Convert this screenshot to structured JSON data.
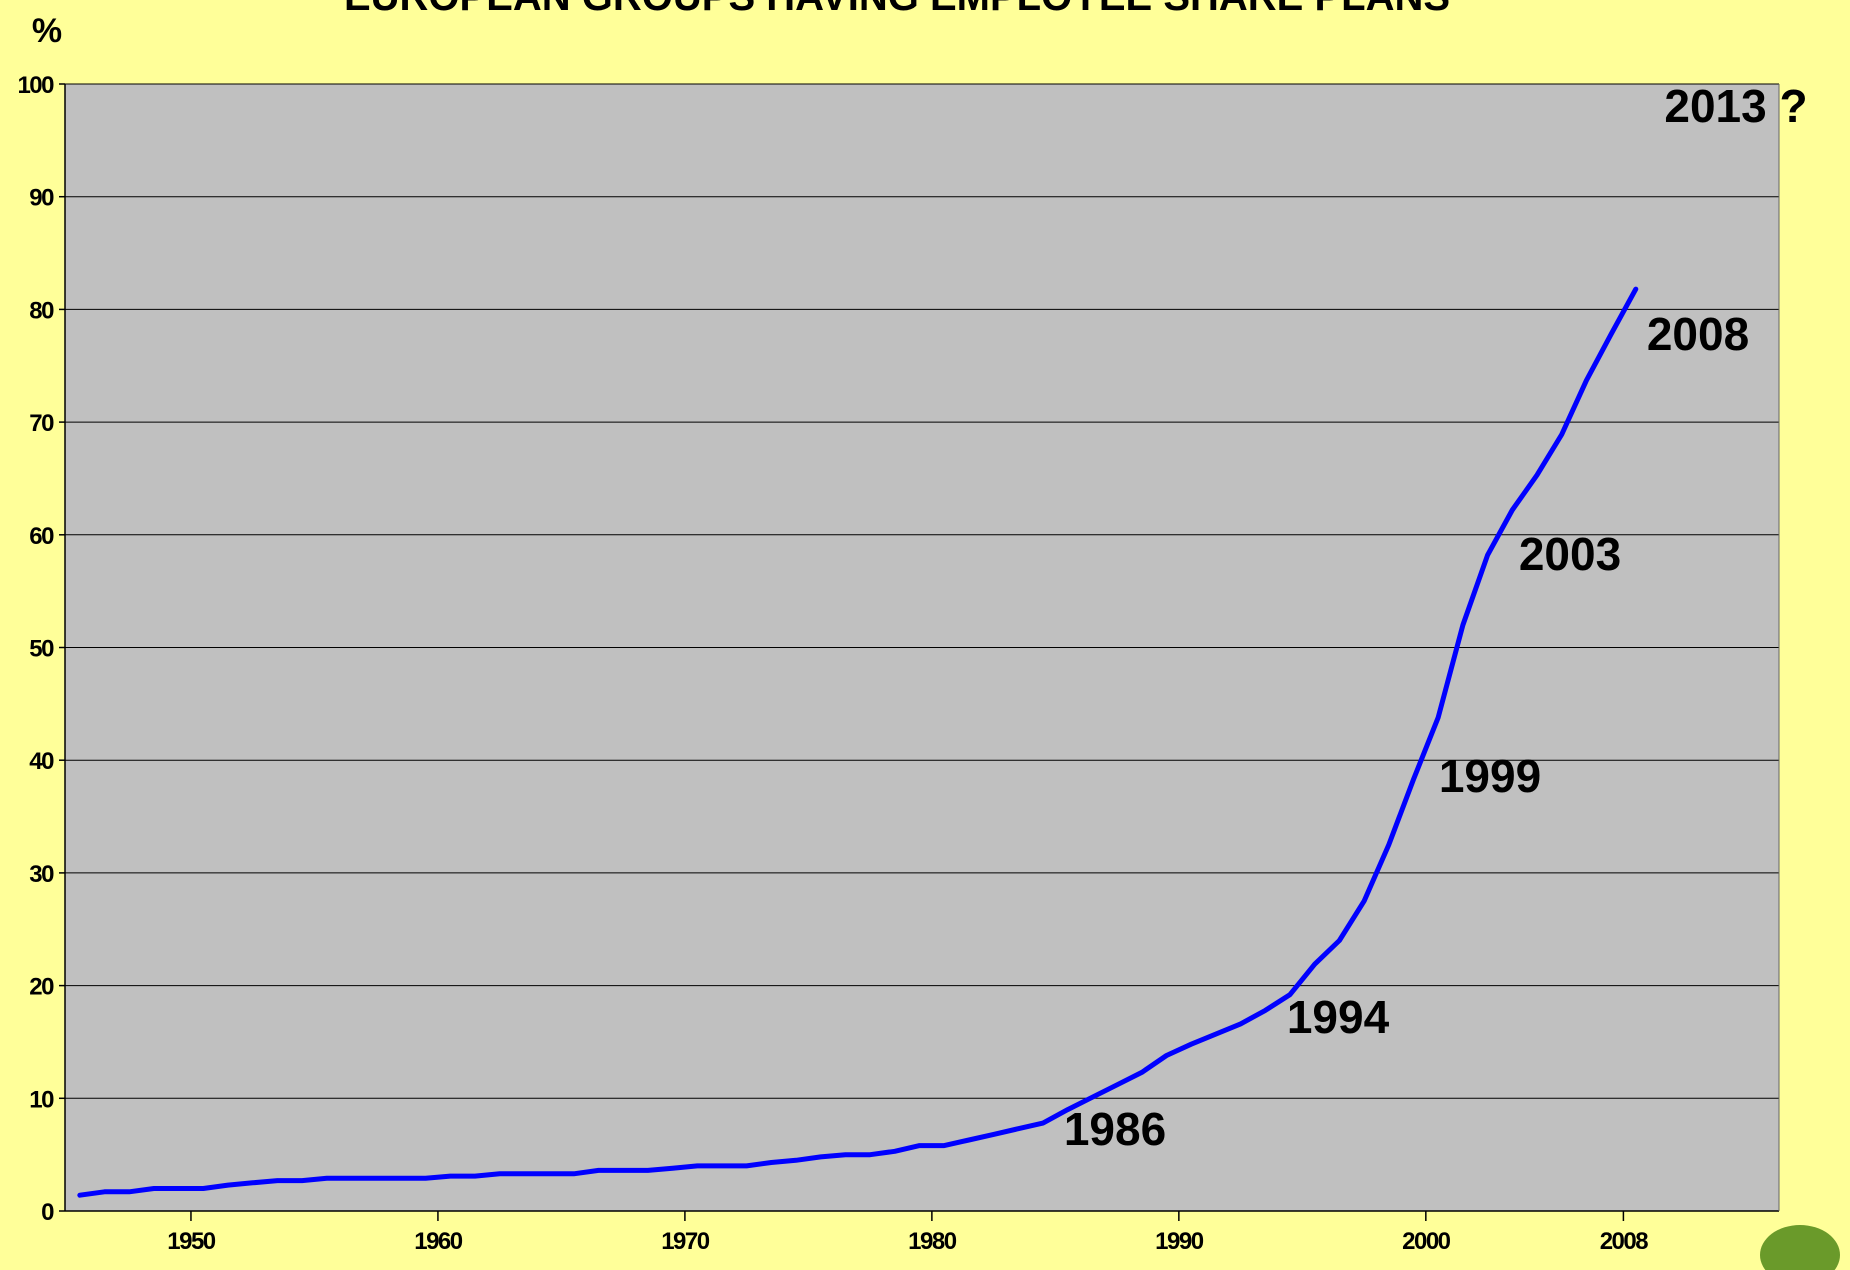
{
  "chart_data": {
    "type": "line",
    "title": "EUROPEAN GROUPS HAVING EMPLOYEE SHARE PLANS",
    "y_label": "%",
    "x": [
      1945.5,
      1946.5,
      1947.5,
      1948.5,
      1949.5,
      1950.5,
      1951.5,
      1952.5,
      1953.5,
      1954.5,
      1955.5,
      1956.5,
      1957.5,
      1958.5,
      1959.5,
      1960.5,
      1961.5,
      1962.5,
      1963.5,
      1964.5,
      1965.5,
      1966.5,
      1967.5,
      1968.5,
      1969.5,
      1970.5,
      1971.5,
      1972.5,
      1973.5,
      1974.5,
      1975.5,
      1976.5,
      1977.5,
      1978.5,
      1979.5,
      1980.5,
      1981.5,
      1982.5,
      1983.5,
      1984.5,
      1985.5,
      1986.5,
      1987.5,
      1988.5,
      1989.5,
      1990.5,
      1991.5,
      1992.5,
      1993.5,
      1994.5,
      1995.5,
      1996.5,
      1997.5,
      1998.5,
      1999.5,
      2000.5,
      2001.5,
      2002.5,
      2003.5,
      2004.5,
      2005.5,
      2006.5,
      2007.5,
      2008.5
    ],
    "series": [
      {
        "color": "#0000ff",
        "values": [
          1.4,
          1.7,
          1.7,
          2.0,
          2.0,
          2.0,
          2.3,
          2.5,
          2.7,
          2.7,
          2.9,
          2.9,
          2.9,
          2.9,
          2.9,
          3.1,
          3.1,
          3.3,
          3.3,
          3.3,
          3.3,
          3.6,
          3.6,
          3.6,
          3.8,
          4.0,
          4.0,
          4.0,
          4.3,
          4.5,
          4.8,
          5.0,
          5.0,
          5.3,
          5.8,
          5.8,
          6.3,
          6.8,
          7.3,
          7.8,
          9.0,
          10.1,
          11.2,
          12.3,
          13.8,
          14.8,
          15.7,
          16.6,
          17.8,
          19.2,
          21.9,
          24.0,
          27.5,
          32.5,
          38.3,
          43.8,
          52,
          58.2,
          62.2,
          65.3,
          68.9,
          73.7,
          77.8,
          81.8
        ]
      }
    ],
    "xlim": [
      1944.9,
      2014.3
    ],
    "xticks": [
      1950,
      1960,
      1970,
      1980,
      1990,
      2000,
      2008
    ],
    "ylim": [
      0,
      100
    ],
    "yticks": [
      0,
      10,
      20,
      30,
      40,
      50,
      60,
      70,
      80,
      90,
      100
    ],
    "grid": true,
    "annotations": [
      "1986",
      "1994",
      "1999",
      "2003",
      "2008",
      "2013 ?"
    ]
  }
}
